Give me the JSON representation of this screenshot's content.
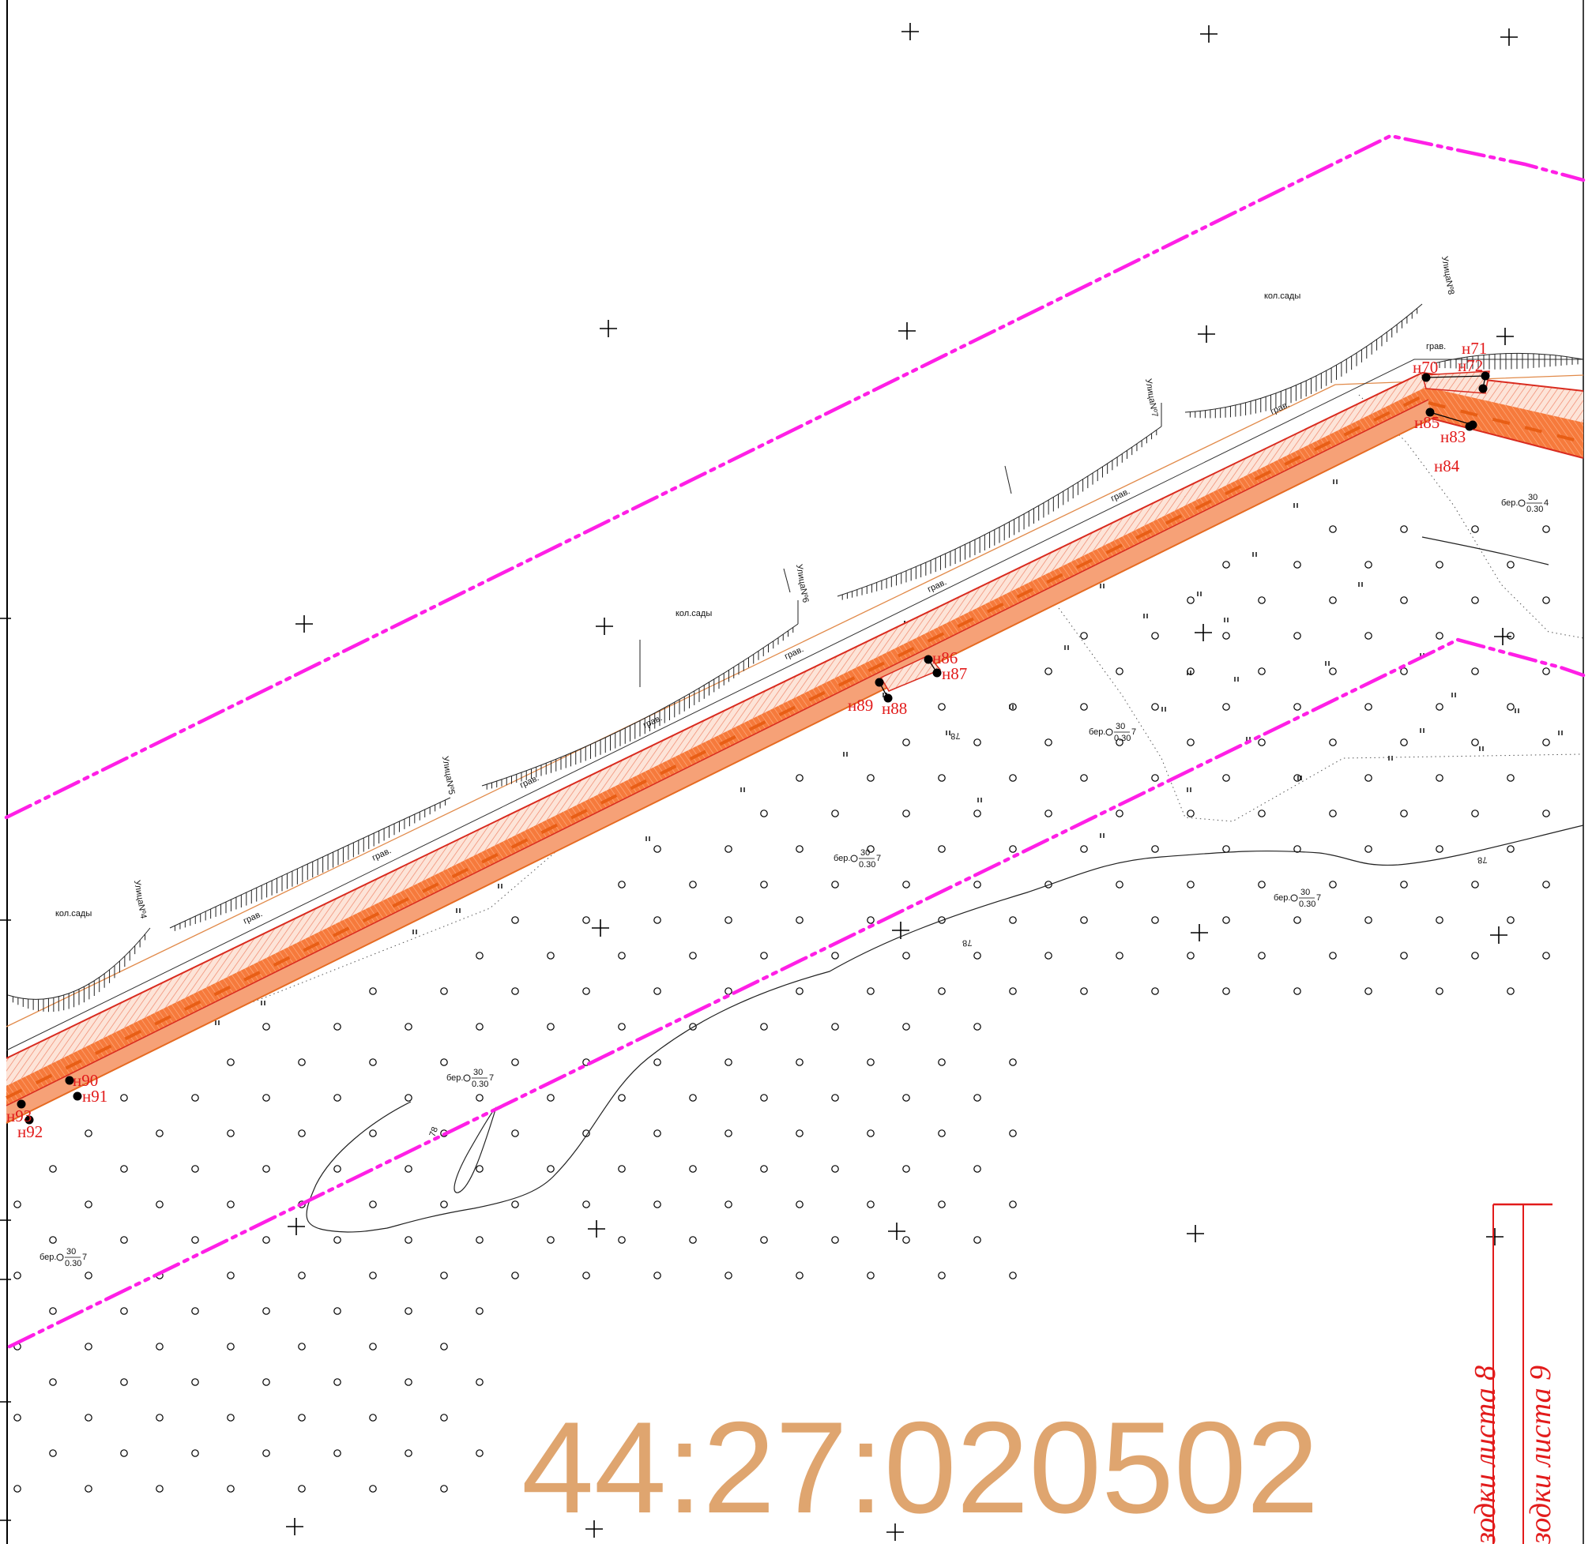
{
  "colors": {
    "boundary": "#ff1fe6",
    "road_fill": "#f4753a",
    "road_hatch": "#fbb9a0",
    "road_line": "#d92b1f",
    "cadastral": "#dfa56f",
    "sheet_lines": "#e21b1b"
  },
  "map": {
    "cadastral_number": "44:27:020502",
    "area_labels": [
      "кол.сады",
      "кол.сады",
      "кол.сады"
    ],
    "street_labels": [
      "УлицаNº4",
      "УлицаNº5",
      "УлицаNº6",
      "УлицаNº7",
      "УлицаNº8"
    ],
    "surface_labels": [
      "грав.",
      "грав.",
      "грав.",
      "грав.",
      "грав.",
      "грав.",
      "грав.",
      "грав.",
      "грав."
    ],
    "forest_labels": [
      {
        "prefix": "бер.",
        "top": "30",
        "bottom": "0.30",
        "suffix": "4"
      },
      {
        "prefix": "бер.",
        "top": "30",
        "bottom": "0.30",
        "suffix": "7"
      },
      {
        "prefix": "бер.",
        "top": "30",
        "bottom": "0.30",
        "suffix": "7"
      },
      {
        "prefix": "бер.",
        "top": "30",
        "bottom": "0.30",
        "suffix": "7"
      },
      {
        "prefix": "бер.",
        "top": "30",
        "bottom": "0.30",
        "suffix": "7"
      },
      {
        "prefix": "бер.",
        "top": "30",
        "bottom": "0.30",
        "suffix": "7"
      }
    ],
    "contour_labels": [
      "78",
      "78",
      "78",
      "78"
    ],
    "points": [
      "н70",
      "н71",
      "н72",
      "н83",
      "н84",
      "н85",
      "н86",
      "н87",
      "н88",
      "н89",
      "н90",
      "н91",
      "н92",
      "н93"
    ],
    "sheet_labels": [
      "зодки листа 8",
      "зодки листа 9"
    ]
  }
}
